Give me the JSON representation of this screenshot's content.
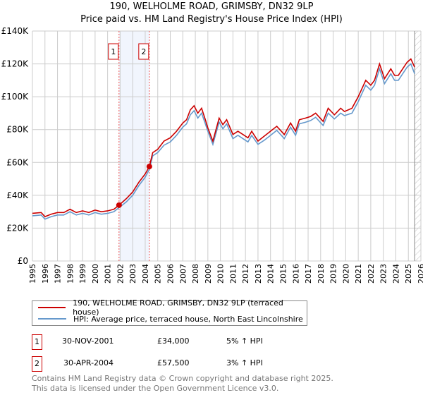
{
  "chart_data": {
    "type": "line",
    "title": "190, WELHOLME ROAD, GRIMSBY, DN32 9LP",
    "subtitle": "Price paid vs. HM Land Registry's House Price Index (HPI)",
    "xlim": [
      1995,
      2026
    ],
    "ylim": [
      0,
      140000
    ],
    "yticks": [
      0,
      20000,
      40000,
      60000,
      80000,
      100000,
      120000,
      140000
    ],
    "ytick_labels": [
      "£0",
      "£20K",
      "£40K",
      "£60K",
      "£80K",
      "£100K",
      "£120K",
      "£140K"
    ],
    "xticks": [
      1995,
      1996,
      1997,
      1998,
      1999,
      2000,
      2001,
      2002,
      2003,
      2004,
      2005,
      2006,
      2007,
      2008,
      2009,
      2010,
      2011,
      2012,
      2013,
      2014,
      2015,
      2016,
      2017,
      2018,
      2019,
      2020,
      2021,
      2022,
      2023,
      2024,
      2025,
      2026
    ],
    "grid": true,
    "shaded_span": [
      2001.91,
      2004.33
    ],
    "forecast_hatch_from": 2025.5,
    "series": [
      {
        "name": "190, WELHOLME ROAD, GRIMSBY, DN32 9LP (terraced house)",
        "color": "#cc0000",
        "x": [
          1995,
          1995.7,
          1996,
          1996.5,
          1997,
          1997.5,
          1998,
          1998.5,
          1999,
          1999.5,
          2000,
          2000.5,
          2001,
          2001.5,
          2001.91,
          2002.5,
          2003,
          2003.5,
          2004,
          2004.33,
          2004.6,
          2005,
          2005.5,
          2006,
          2006.5,
          2007,
          2007.3,
          2007.6,
          2007.9,
          2008.2,
          2008.5,
          2008.8,
          2009,
          2009.4,
          2009.9,
          2010.2,
          2010.5,
          2011,
          2011.4,
          2011.8,
          2012.2,
          2012.5,
          2013,
          2013.5,
          2014,
          2014.5,
          2015.1,
          2015.6,
          2016,
          2016.3,
          2016.8,
          2017.2,
          2017.6,
          2018.2,
          2018.6,
          2019.1,
          2019.6,
          2019.9,
          2020.5,
          2021,
          2021.6,
          2022,
          2022.3,
          2022.7,
          2023.1,
          2023.6,
          2023.9,
          2024.2,
          2024.9,
          2025.2,
          2025.5
        ],
        "y": [
          29000,
          29500,
          27000,
          28500,
          29500,
          29500,
          31500,
          29500,
          30500,
          29500,
          31000,
          30000,
          30500,
          31500,
          34000,
          38000,
          42000,
          48000,
          53000,
          57500,
          66000,
          68000,
          73000,
          75000,
          79000,
          84000,
          86000,
          92000,
          94500,
          90000,
          93000,
          86000,
          81000,
          73000,
          87000,
          83000,
          86000,
          77000,
          79000,
          77000,
          75000,
          79000,
          73000,
          76000,
          79000,
          82000,
          77000,
          84000,
          79000,
          86000,
          87000,
          88000,
          90000,
          85000,
          93000,
          89000,
          93000,
          91000,
          93000,
          100000,
          110000,
          107000,
          110000,
          120000,
          111000,
          117000,
          113000,
          113000,
          121000,
          123000,
          118000
        ]
      },
      {
        "name": "HPI: Average price, terraced house, North East Lincolnshire",
        "color": "#6699cc",
        "x": [
          1995,
          1995.7,
          1996,
          1996.5,
          1997,
          1997.5,
          1998,
          1998.5,
          1999,
          1999.5,
          2000,
          2000.5,
          2001,
          2001.5,
          2001.91,
          2002.5,
          2003,
          2003.5,
          2004,
          2004.33,
          2004.6,
          2005,
          2005.5,
          2006,
          2006.5,
          2007,
          2007.3,
          2007.6,
          2007.9,
          2008.2,
          2008.5,
          2008.8,
          2009,
          2009.4,
          2009.9,
          2010.2,
          2010.5,
          2011,
          2011.4,
          2011.8,
          2012.2,
          2012.5,
          2013,
          2013.5,
          2014,
          2014.5,
          2015.1,
          2015.6,
          2016,
          2016.3,
          2016.8,
          2017.2,
          2017.6,
          2018.2,
          2018.6,
          2019.1,
          2019.6,
          2019.9,
          2020.5,
          2021,
          2021.6,
          2022,
          2022.3,
          2022.7,
          2023.1,
          2023.6,
          2023.9,
          2024.2,
          2024.9,
          2025.2,
          2025.5
        ],
        "y": [
          27500,
          28000,
          25500,
          27000,
          28000,
          28000,
          30000,
          28000,
          29000,
          28000,
          29500,
          28500,
          29000,
          30000,
          32500,
          36000,
          40000,
          46000,
          51000,
          55800,
          64000,
          66000,
          70500,
          72500,
          76500,
          81500,
          83500,
          89000,
          91500,
          87000,
          90000,
          83500,
          79000,
          71000,
          84500,
          80500,
          83500,
          74500,
          76500,
          74500,
          72500,
          76500,
          71000,
          73500,
          76500,
          79500,
          74500,
          81500,
          76500,
          83500,
          84500,
          85500,
          87500,
          82500,
          90000,
          86500,
          90000,
          88500,
          90000,
          97000,
          107000,
          104000,
          107000,
          117000,
          108000,
          114000,
          110000,
          110000,
          118000,
          120000,
          114000
        ]
      }
    ],
    "sales": [
      {
        "label": "1",
        "x": 2001.91,
        "y": 34000
      },
      {
        "label": "2",
        "x": 2004.33,
        "y": 57500
      }
    ]
  },
  "legend": {
    "property": "190, WELHOLME ROAD, GRIMSBY, DN32 9LP (terraced house)",
    "hpi": "HPI: Average price, terraced house, North East Lincolnshire"
  },
  "transactions": [
    {
      "num": "1",
      "date": "30-NOV-2001",
      "price": "£34,000",
      "hpi": "5% ↑ HPI"
    },
    {
      "num": "2",
      "date": "30-APR-2004",
      "price": "£57,500",
      "hpi": "3% ↑ HPI"
    }
  ],
  "footer": {
    "line1": "Contains HM Land Registry data © Crown copyright and database right 2025.",
    "line2": "This data is licensed under the Open Government Licence v3.0."
  }
}
